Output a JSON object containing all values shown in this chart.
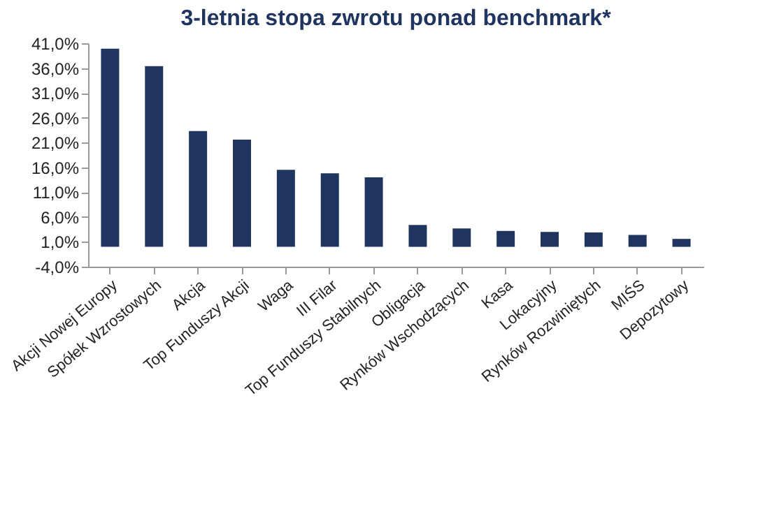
{
  "chart_data": {
    "type": "bar",
    "title": "3-letnia stopa zwrotu ponad benchmark*",
    "categories": [
      "Akcji Nowej Europy",
      "Spółek Wzrostowych",
      "Akcja",
      "Top Funduszy Akcji",
      "Waga",
      "III Filar",
      "Top Funduszy Stabilnych",
      "Obligacja",
      "Rynków Wschodzących",
      "Kasa",
      "Lokacyjny",
      "Rynków Rozwiniętych",
      "MIŚS",
      "Depozytowy"
    ],
    "values": [
      39.9,
      36.4,
      23.3,
      21.6,
      15.5,
      14.8,
      14.0,
      4.4,
      3.7,
      3.2,
      3.0,
      2.9,
      2.4,
      1.6
    ],
    "color": "#1f3560",
    "ylim": [
      -4,
      41
    ],
    "yticks": [
      {
        "value": -4,
        "label": "-4,0%"
      },
      {
        "value": 1,
        "label": "1,0%"
      },
      {
        "value": 6,
        "label": "6,0%"
      },
      {
        "value": 11,
        "label": "11,0%"
      },
      {
        "value": 16,
        "label": "16,0%"
      },
      {
        "value": 21,
        "label": "21,0%"
      },
      {
        "value": 26,
        "label": "26,0%"
      },
      {
        "value": 31,
        "label": "31,0%"
      },
      {
        "value": 36,
        "label": "36,0%"
      },
      {
        "value": 41,
        "label": "41,0%"
      }
    ],
    "grid": false
  }
}
